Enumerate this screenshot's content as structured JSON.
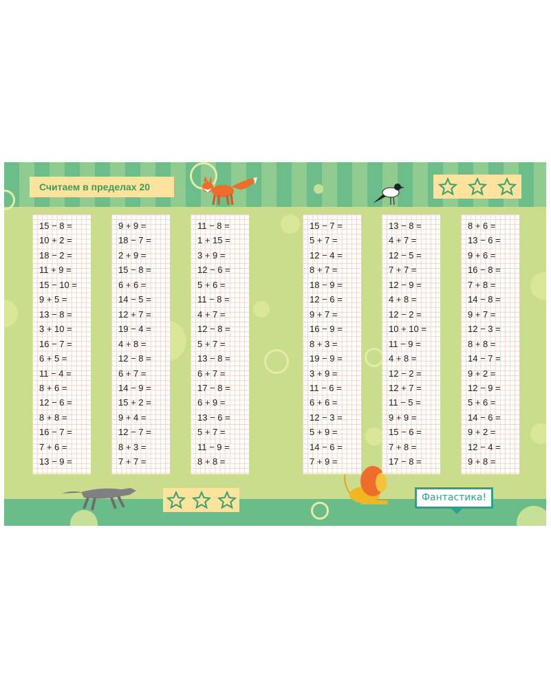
{
  "title": "Считаем в пределах 20",
  "praise": "Фантастика!",
  "star_icons": [
    "star-icon",
    "star-icon",
    "star-icon"
  ],
  "colors": {
    "header_green": "#6cbd89",
    "field_green": "#c9dd8d",
    "title_bg": "#fde39b",
    "title_text": "#3f9a5c",
    "bubble": "#28a38a"
  },
  "columns": [
    [
      "15 − 8 =",
      "10 + 2 =",
      "18 − 2 =",
      "11 + 9 =",
      "15 − 10 =",
      "9 + 5 =",
      "13 − 8 =",
      "3 + 10 =",
      "16 − 7 =",
      "6 + 5 =",
      "11 − 4 =",
      "8 + 6 =",
      "12 − 6 =",
      "8 + 8 =",
      "16 − 7 =",
      "7 + 6 =",
      "13 − 9 ="
    ],
    [
      "9 + 9 =",
      "18 − 7 =",
      "2 + 9 =",
      "15 − 8 =",
      "6 + 6 =",
      "14 − 5 =",
      "12 + 7 =",
      "19 − 4 =",
      "4 + 8 =",
      "12 − 8 =",
      "6 + 7 =",
      "14 − 9 =",
      "15 + 2 =",
      "9 + 4 =",
      "12 − 7 =",
      "8 + 3 =",
      "7 + 7 ="
    ],
    [
      "11 − 8 =",
      "1 + 15 =",
      "3 + 9 =",
      "12 − 6 =",
      "5 + 6 =",
      "11 − 8 =",
      "4 + 7 =",
      "12 − 8 =",
      "5 + 7 =",
      "13 − 8 =",
      "6 + 7 =",
      "17 − 8 =",
      "6 + 9 =",
      "13 − 6 =",
      "5 + 7 =",
      "11 − 9 =",
      "8 + 8 ="
    ],
    [
      "15 − 7 =",
      "5 + 7 =",
      "12 − 4 =",
      "8 + 7 =",
      "18 − 9 =",
      "12 − 6 =",
      "9 + 7 =",
      "16 − 9 =",
      "8 + 3 =",
      "19 − 9 =",
      "3 + 9 =",
      "11 − 6 =",
      "6 + 6 =",
      "12 − 3 =",
      "5 + 9 =",
      "14 − 6 =",
      "7 + 9 ="
    ],
    [
      "13 − 8 =",
      "4 + 7 =",
      "12 − 5 =",
      "7 + 7 =",
      "12 − 9 =",
      "4 + 8 =",
      "12 − 2 =",
      "10 + 10 =",
      "11 − 9 =",
      "4 + 8 =",
      "12 − 2 =",
      "12 + 7 =",
      "11 − 5 =",
      "9 + 9 =",
      "15 − 6 =",
      "7 + 8 =",
      "17 − 8 ="
    ],
    [
      "8 + 6 =",
      "13 − 6 =",
      "9 + 6 =",
      "16 − 8 =",
      "7 + 8 =",
      "14 − 8 =",
      "9 + 7 =",
      "12 − 3 =",
      "8 + 8 =",
      "14 − 7 =",
      "9 + 2 =",
      "12 − 9 =",
      "5 + 6 =",
      "14 − 6 =",
      "9 + 2 =",
      "12 − 4 =",
      "9 + 8 ="
    ]
  ]
}
